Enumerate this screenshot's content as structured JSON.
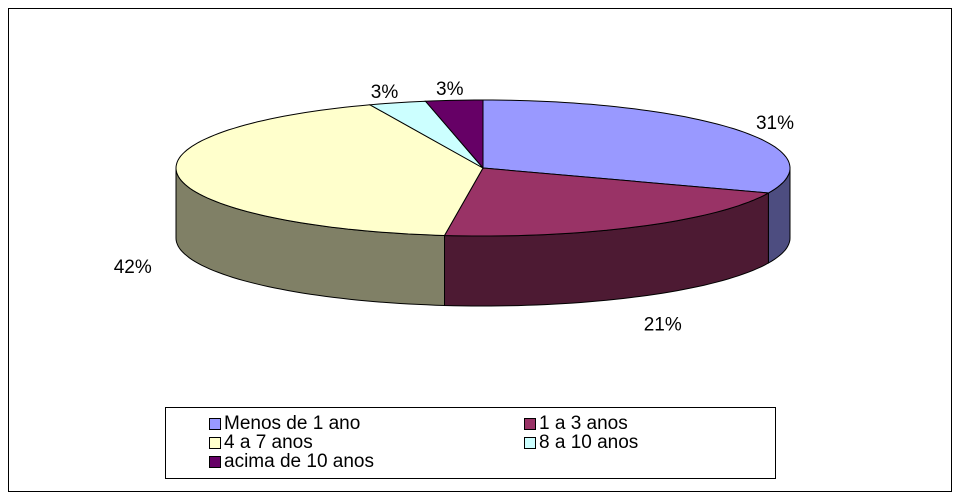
{
  "chart_data": {
    "type": "pie3d",
    "categories": [
      "Menos de 1 ano",
      "1 a 3 anos",
      "4 a 7 anos",
      "8 a 10 anos",
      "acima de 10 anos"
    ],
    "values": [
      31,
      21,
      42,
      3,
      3
    ],
    "value_labels": [
      "31%",
      "21%",
      "42%",
      "3%",
      "3%"
    ],
    "colors": [
      "#9999ff",
      "#993366",
      "#ffffcc",
      "#ccffff",
      "#660066"
    ]
  }
}
